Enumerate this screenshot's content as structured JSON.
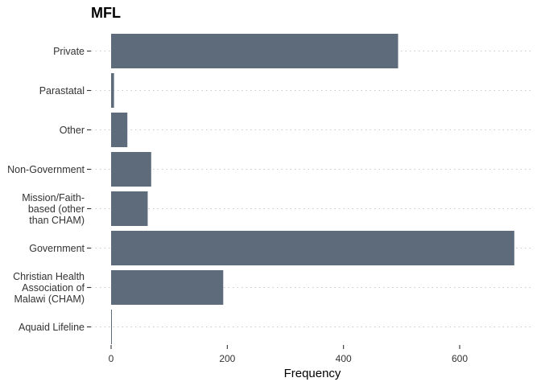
{
  "chart_data": {
    "type": "bar",
    "orientation": "horizontal",
    "title": "MFL",
    "xlabel": "Frequency",
    "ylabel": "",
    "categories": [
      "Private",
      "Parastatal",
      "Other",
      "Non-Government",
      "Mission/Faith-based (other than CHAM)",
      "Government",
      "Christian Health Association of Malawi (CHAM)",
      "Aquaid Lifeline"
    ],
    "category_label_lines": [
      [
        "Private"
      ],
      [
        "Parastatal"
      ],
      [
        "Other"
      ],
      [
        "Non-Government"
      ],
      [
        "Mission/Faith-",
        "based (other",
        "than CHAM)"
      ],
      [
        "Government"
      ],
      [
        "Christian Health",
        "Association of",
        "Malawi (CHAM)"
      ],
      [
        "Aquaid Lifeline"
      ]
    ],
    "values": [
      494,
      5,
      28,
      69,
      63,
      694,
      193,
      1
    ],
    "xlim": [
      0,
      725
    ],
    "xticks": [
      0,
      200,
      400,
      600
    ],
    "grid": "dotted horizontal at each category",
    "bar_color": "#5d6b7b"
  }
}
